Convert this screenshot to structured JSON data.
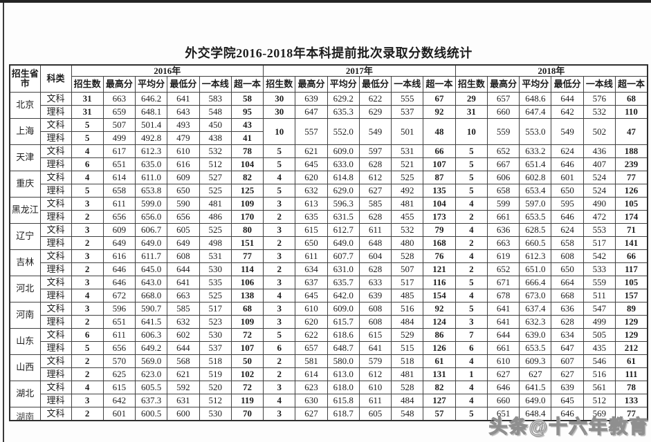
{
  "doc": {
    "title": "外交学院2016-2018年本科提前批次录取分数线统计",
    "watermark": "头条@十六年教育"
  },
  "table": {
    "corner_headers": [
      "招生省市",
      "科类"
    ],
    "year_headers": [
      "2016年",
      "2017年",
      "2018年"
    ],
    "sub_headers": [
      "招生数",
      "最高分",
      "平均分",
      "最低分",
      "一本线",
      "超一本"
    ],
    "provinces": [
      {
        "name": "北京",
        "rows": [
          {
            "type": "文科",
            "y2016": [
              "31",
              "663",
              "646.2",
              "641",
              "583",
              "58"
            ],
            "y2017": [
              "30",
              "639",
              "629.2",
              "622",
              "555",
              "67"
            ],
            "y2018": [
              "29",
              "657",
              "648.6",
              "644",
              "576",
              "68"
            ]
          },
          {
            "type": "理科",
            "y2016": [
              "31",
              "659",
              "648.1",
              "643",
              "548",
              "95"
            ],
            "y2017": [
              "30",
              "647",
              "635.3",
              "629",
              "537",
              "92"
            ],
            "y2018": [
              "31",
              "660",
              "647.4",
              "642",
              "532",
              "110"
            ]
          }
        ]
      },
      {
        "name": "上海",
        "merged_years": {
          "y2017": [
            "10",
            "557",
            "552.0",
            "549",
            "501",
            "48"
          ],
          "y2018": [
            "10",
            "559",
            "553.0",
            "549",
            "502",
            "47"
          ]
        },
        "rows": [
          {
            "type": "文科",
            "y2016": [
              "5",
              "507",
              "501.4",
              "493",
              "450",
              "43"
            ]
          },
          {
            "type": "理科",
            "y2016": [
              "5",
              "499",
              "492.8",
              "479",
              "438",
              "41"
            ]
          }
        ]
      },
      {
        "name": "天津",
        "rows": [
          {
            "type": "文科",
            "y2016": [
              "4",
              "617",
              "612.3",
              "610",
              "532",
              "78"
            ],
            "y2017": [
              "5",
              "621",
              "609.0",
              "597",
              "531",
              "66"
            ],
            "y2018": [
              "5",
              "652",
              "633.2",
              "624",
              "436",
              "188"
            ]
          },
          {
            "type": "理科",
            "y2016": [
              "6",
              "651",
              "635.0",
              "616",
              "512",
              "104"
            ],
            "y2017": [
              "5",
              "645",
              "633.0",
              "628",
              "521",
              "107"
            ],
            "y2018": [
              "5",
              "667",
              "651.4",
              "646",
              "407",
              "239"
            ]
          }
        ]
      },
      {
        "name": "重庆",
        "rows": [
          {
            "type": "文科",
            "y2016": [
              "4",
              "614",
              "611.0",
              "609",
              "527",
              "82"
            ],
            "y2017": [
              "4",
              "620",
              "614.8",
              "612",
              "525",
              "87"
            ],
            "y2018": [
              "5",
              "606",
              "602.8",
              "601",
              "524",
              "77"
            ]
          },
          {
            "type": "理科",
            "y2016": [
              "5",
              "658",
              "653.8",
              "650",
              "525",
              "125"
            ],
            "y2017": [
              "5",
              "632",
              "629.0",
              "627",
              "492",
              "135"
            ],
            "y2018": [
              "5",
              "658",
              "653.4",
              "650",
              "524",
              "126"
            ]
          }
        ]
      },
      {
        "name": "黑龙江",
        "rows": [
          {
            "type": "文科",
            "y2016": [
              "3",
              "611",
              "599.0",
              "590",
              "481",
              "109"
            ],
            "y2017": [
              "3",
              "613",
              "596.3",
              "585",
              "481",
              "104"
            ],
            "y2018": [
              "4",
              "599",
              "597.0",
              "595",
              "490",
              "105"
            ]
          },
          {
            "type": "理科",
            "y2016": [
              "2",
              "656",
              "656.0",
              "656",
              "486",
              "170"
            ],
            "y2017": [
              "2",
              "635",
              "631.5",
              "628",
              "455",
              "173"
            ],
            "y2018": [
              "2",
              "661",
              "653.5",
              "646",
              "472",
              "174"
            ]
          }
        ]
      },
      {
        "name": "辽宁",
        "rows": [
          {
            "type": "文科",
            "y2016": [
              "3",
              "609",
              "606.7",
              "605",
              "525",
              "80"
            ],
            "y2017": [
              "3",
              "615",
              "612.7",
              "611",
              "532",
              "79"
            ],
            "y2018": [
              "4",
              "636",
              "628.5",
              "624",
              "553",
              "71"
            ]
          },
          {
            "type": "理科",
            "y2016": [
              "2",
              "649",
              "649.0",
              "649",
              "498",
              "151"
            ],
            "y2017": [
              "2",
              "650",
              "649.0",
              "648",
              "480",
              "168"
            ],
            "y2018": [
              "2",
              "663",
              "660.5",
              "658",
              "517",
              "141"
            ]
          }
        ]
      },
      {
        "name": "吉林",
        "rows": [
          {
            "type": "文科",
            "y2016": [
              "3",
              "616",
              "611.7",
              "608",
              "531",
              "77"
            ],
            "y2017": [
              "3",
              "611",
              "607.7",
              "604",
              "528",
              "76"
            ],
            "y2018": [
              "4",
              "619",
              "612.3",
              "608",
              "542",
              "66"
            ]
          },
          {
            "type": "理科",
            "y2016": [
              "2",
              "646",
              "645.0",
              "644",
              "530",
              "114"
            ],
            "y2017": [
              "2",
              "634",
              "631.0",
              "628",
              "507",
              "121"
            ],
            "y2018": [
              "2",
              "652",
              "651.0",
              "650",
              "533",
              "117"
            ]
          }
        ]
      },
      {
        "name": "河北",
        "rows": [
          {
            "type": "文科",
            "y2016": [
              "3",
              "646",
              "643.0",
              "641",
              "535",
              "106"
            ],
            "y2017": [
              "3",
              "637",
              "635.7",
              "633",
              "517",
              "116"
            ],
            "y2018": [
              "5",
              "671",
              "666.4",
              "664",
              "559",
              "105"
            ]
          },
          {
            "type": "理科",
            "y2016": [
              "4",
              "672",
              "668.0",
              "663",
              "525",
              "138"
            ],
            "y2017": [
              "4",
              "645",
              "642.0",
              "639",
              "485",
              "154"
            ],
            "y2018": [
              "4",
              "678",
              "673.0",
              "668",
              "511",
              "157"
            ]
          }
        ]
      },
      {
        "name": "河南",
        "rows": [
          {
            "type": "文科",
            "y2016": [
              "3",
              "596",
              "590.7",
              "585",
              "517",
              "68"
            ],
            "y2017": [
              "3",
              "610",
              "609.0",
              "608",
              "516",
              "92"
            ],
            "y2018": [
              "5",
              "641",
              "637.4",
              "636",
              "547",
              "89"
            ]
          },
          {
            "type": "理科",
            "y2016": [
              "2",
              "651",
              "641.5",
              "632",
              "523",
              "109"
            ],
            "y2017": [
              "3",
              "620",
              "615.7",
              "608",
              "484",
              "124"
            ],
            "y2018": [
              "3",
              "641",
              "632.3",
              "628",
              "499",
              "129"
            ]
          }
        ]
      },
      {
        "name": "山东",
        "rows": [
          {
            "type": "文科",
            "y2016": [
              "6",
              "611",
              "606.3",
              "602",
              "530",
              "72"
            ],
            "y2017": [
              "5",
              "622",
              "618.6",
              "615",
              "529",
              "86"
            ],
            "y2018": [
              "7",
              "644",
              "639.0",
              "634",
              "505",
              "129"
            ]
          },
          {
            "type": "理科",
            "y2016": [
              "5",
              "656",
              "649.2",
              "644",
              "537",
              "107"
            ],
            "y2017": [
              "6",
              "657",
              "648.7",
              "641",
              "515",
              "126"
            ],
            "y2018": [
              "6",
              "661",
              "653.5",
              "647",
              "435",
              "212"
            ]
          }
        ]
      },
      {
        "name": "山西",
        "rows": [
          {
            "type": "文科",
            "y2016": [
              "2",
              "570",
              "569.0",
              "568",
              "518",
              "50"
            ],
            "y2017": [
              "2",
              "581",
              "580.0",
              "579",
              "518",
              "61"
            ],
            "y2018": [
              "4",
              "610",
              "609.3",
              "607",
              "546",
              "61"
            ]
          },
          {
            "type": "理科",
            "y2016": [
              "2",
              "625",
              "623.0",
              "621",
              "519",
              "102"
            ],
            "y2017": [
              "2",
              "614",
              "613.0",
              "612",
              "481",
              "131"
            ],
            "y2018": [
              "1",
              "627",
              "627",
              "627",
              "516",
              "111"
            ]
          }
        ]
      },
      {
        "name": "湖北",
        "rows": [
          {
            "type": "文科",
            "y2016": [
              "4",
              "615",
              "605.5",
              "592",
              "520",
              "72"
            ],
            "y2017": [
              "3",
              "623",
              "618.0",
              "610",
              "528",
              "82"
            ],
            "y2018": [
              "4",
              "646",
              "641.5",
              "639",
              "561",
              "78"
            ]
          },
          {
            "type": "理科",
            "y2016": [
              "3",
              "642",
              "637.3",
              "631",
              "512",
              "119"
            ],
            "y2017": [
              "4",
              "630",
              "615.8",
              "611",
              "484",
              "127"
            ],
            "y2018": [
              "4",
              "660",
              "649.0",
              "645",
              "512",
              "133"
            ]
          }
        ]
      },
      {
        "name": "湖南",
        "clipped": true,
        "rows": [
          {
            "type": "文科",
            "y2016": [
              "2",
              "601",
              "600.5",
              "600",
              "530",
              "70"
            ],
            "y2017": [
              "3",
              "627",
              "618.7",
              "605",
              "548",
              "57"
            ],
            "y2018": [
              "5",
              "651",
              "648.4",
              "646",
              "569",
              "77"
            ]
          }
        ]
      }
    ]
  }
}
